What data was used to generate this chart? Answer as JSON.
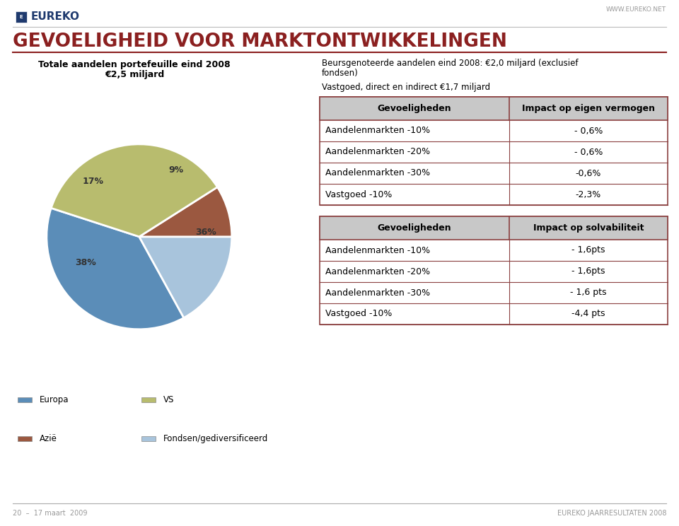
{
  "title": "GEVOELIGHEID VOOR MARKTONTWIKKELINGEN",
  "title_color": "#8B2020",
  "header_line_color": "#8B2020",
  "background_color": "#F2F2F2",
  "logo_text": "EUREKO",
  "logo_color": "#1F3A6E",
  "website": "WWW.EUREKO.NET",
  "footer_left": "20  –  17 maart  2009",
  "footer_right": "EUREKO JAARRESULTATEN 2008",
  "pie_title1": "Totale aandelen portefeuille eind 2008",
  "pie_title2": "€2,5 miljard",
  "pie_sizes": [
    38,
    17,
    9,
    36
  ],
  "pie_colors": [
    "#5B8DB8",
    "#A8C4DC",
    "#9B5840",
    "#B8BC6E"
  ],
  "pie_labels": [
    "38%",
    "17%",
    "9%",
    "36%"
  ],
  "legend_items": [
    {
      "label": "Europa",
      "color": "#5B8DB8"
    },
    {
      "label": "Azië",
      "color": "#9B5840"
    },
    {
      "label": "VS",
      "color": "#B8BC6E"
    },
    {
      "label": "Fondsen/gediversificeerd",
      "color": "#A8C4DC"
    }
  ],
  "right_title1": "Beursgenoteerde aandelen eind 2008: €2,0 miljard (exclusief",
  "right_title2": "fondsen)",
  "right_subtitle": "Vastgoed, direct en indirect €1,7 miljard",
  "table1_header": [
    "Gevoeligheden",
    "Impact op eigen vermogen"
  ],
  "table1_rows": [
    [
      "Aandelenmarkten -10%",
      "- 0,6%"
    ],
    [
      "Aandelenmarkten -20%",
      "- 0,6%"
    ],
    [
      "Aandelenmarkten -30%",
      "-0,6%"
    ],
    [
      "Vastgoed -10%",
      "-2,3%"
    ]
  ],
  "table2_header": [
    "Gevoeligheden",
    "Impact op solvabiliteit"
  ],
  "table2_rows": [
    [
      "Aandelenmarkten -10%",
      "- 1,6pts"
    ],
    [
      "Aandelenmarkten -20%",
      "- 1,6pts"
    ],
    [
      "Aandelenmarkten -30%",
      "- 1,6 pts"
    ],
    [
      "Vastgoed -10%",
      "-4,4 pts"
    ]
  ],
  "table_header_bg": "#C8C8C8",
  "table_border_color": "#8B4040",
  "table_text_color": "#000000"
}
